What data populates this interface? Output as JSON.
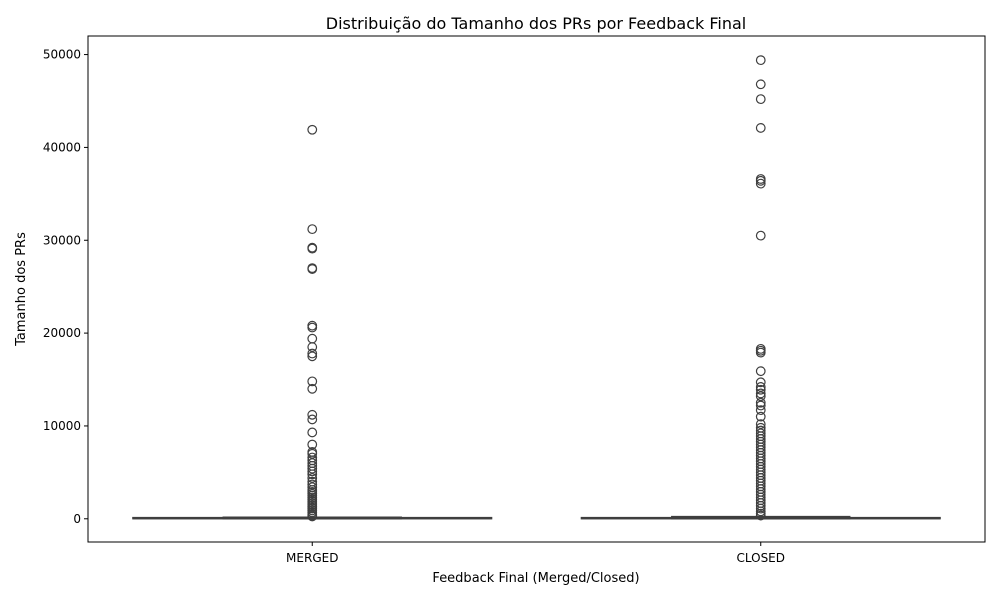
{
  "chart_data": {
    "type": "box",
    "title": "Distribuição do Tamanho dos PRs por Feedback Final",
    "xlabel": "Feedback Final (Merged/Closed)",
    "ylabel": "Tamanho dos PRs",
    "categories": [
      "MERGED",
      "CLOSED"
    ],
    "ylim": [
      -2500,
      52000
    ],
    "yticks": [
      0,
      10000,
      20000,
      30000,
      40000,
      50000
    ],
    "grid": false,
    "colors": {
      "box_stroke": "#3f3f3f",
      "box_fill": "#ffffff",
      "outlier_stroke": "#3f3f3f"
    },
    "boxes": [
      {
        "category": "MERGED",
        "whisker_low": 0,
        "q1": 5,
        "median": 20,
        "q3": 80,
        "whisker_high": 180,
        "outliers": [
          41900,
          31200,
          29200,
          29100,
          27000,
          26900,
          20800,
          20600,
          19400,
          18500,
          17800,
          17500,
          14800,
          14000,
          11200,
          10700,
          9300,
          8000,
          7200,
          7000,
          6600,
          6300,
          6000,
          5700,
          5400,
          5100,
          4800,
          4400,
          4000,
          3700,
          3400,
          3100,
          2900,
          2700,
          2500,
          2300,
          2100,
          1900,
          1700,
          1500,
          1300,
          1100,
          900,
          700,
          500,
          350,
          250
        ]
      },
      {
        "category": "CLOSED",
        "whisker_low": 0,
        "q1": 5,
        "median": 25,
        "q3": 100,
        "whisker_high": 240,
        "outliers": [
          49400,
          46800,
          45200,
          42100,
          36600,
          36400,
          36100,
          30500,
          18300,
          18100,
          17900,
          15900,
          14700,
          14200,
          13900,
          13500,
          13200,
          12500,
          12200,
          11700,
          11000,
          10200,
          9800,
          9500,
          9200,
          8900,
          8600,
          8300,
          8000,
          7700,
          7400,
          7100,
          6800,
          6500,
          6200,
          5900,
          5600,
          5300,
          5000,
          4700,
          4400,
          4100,
          3800,
          3500,
          3200,
          2900,
          2600,
          2300,
          2000,
          1700,
          1400,
          1100,
          800,
          550,
          350
        ]
      }
    ]
  }
}
